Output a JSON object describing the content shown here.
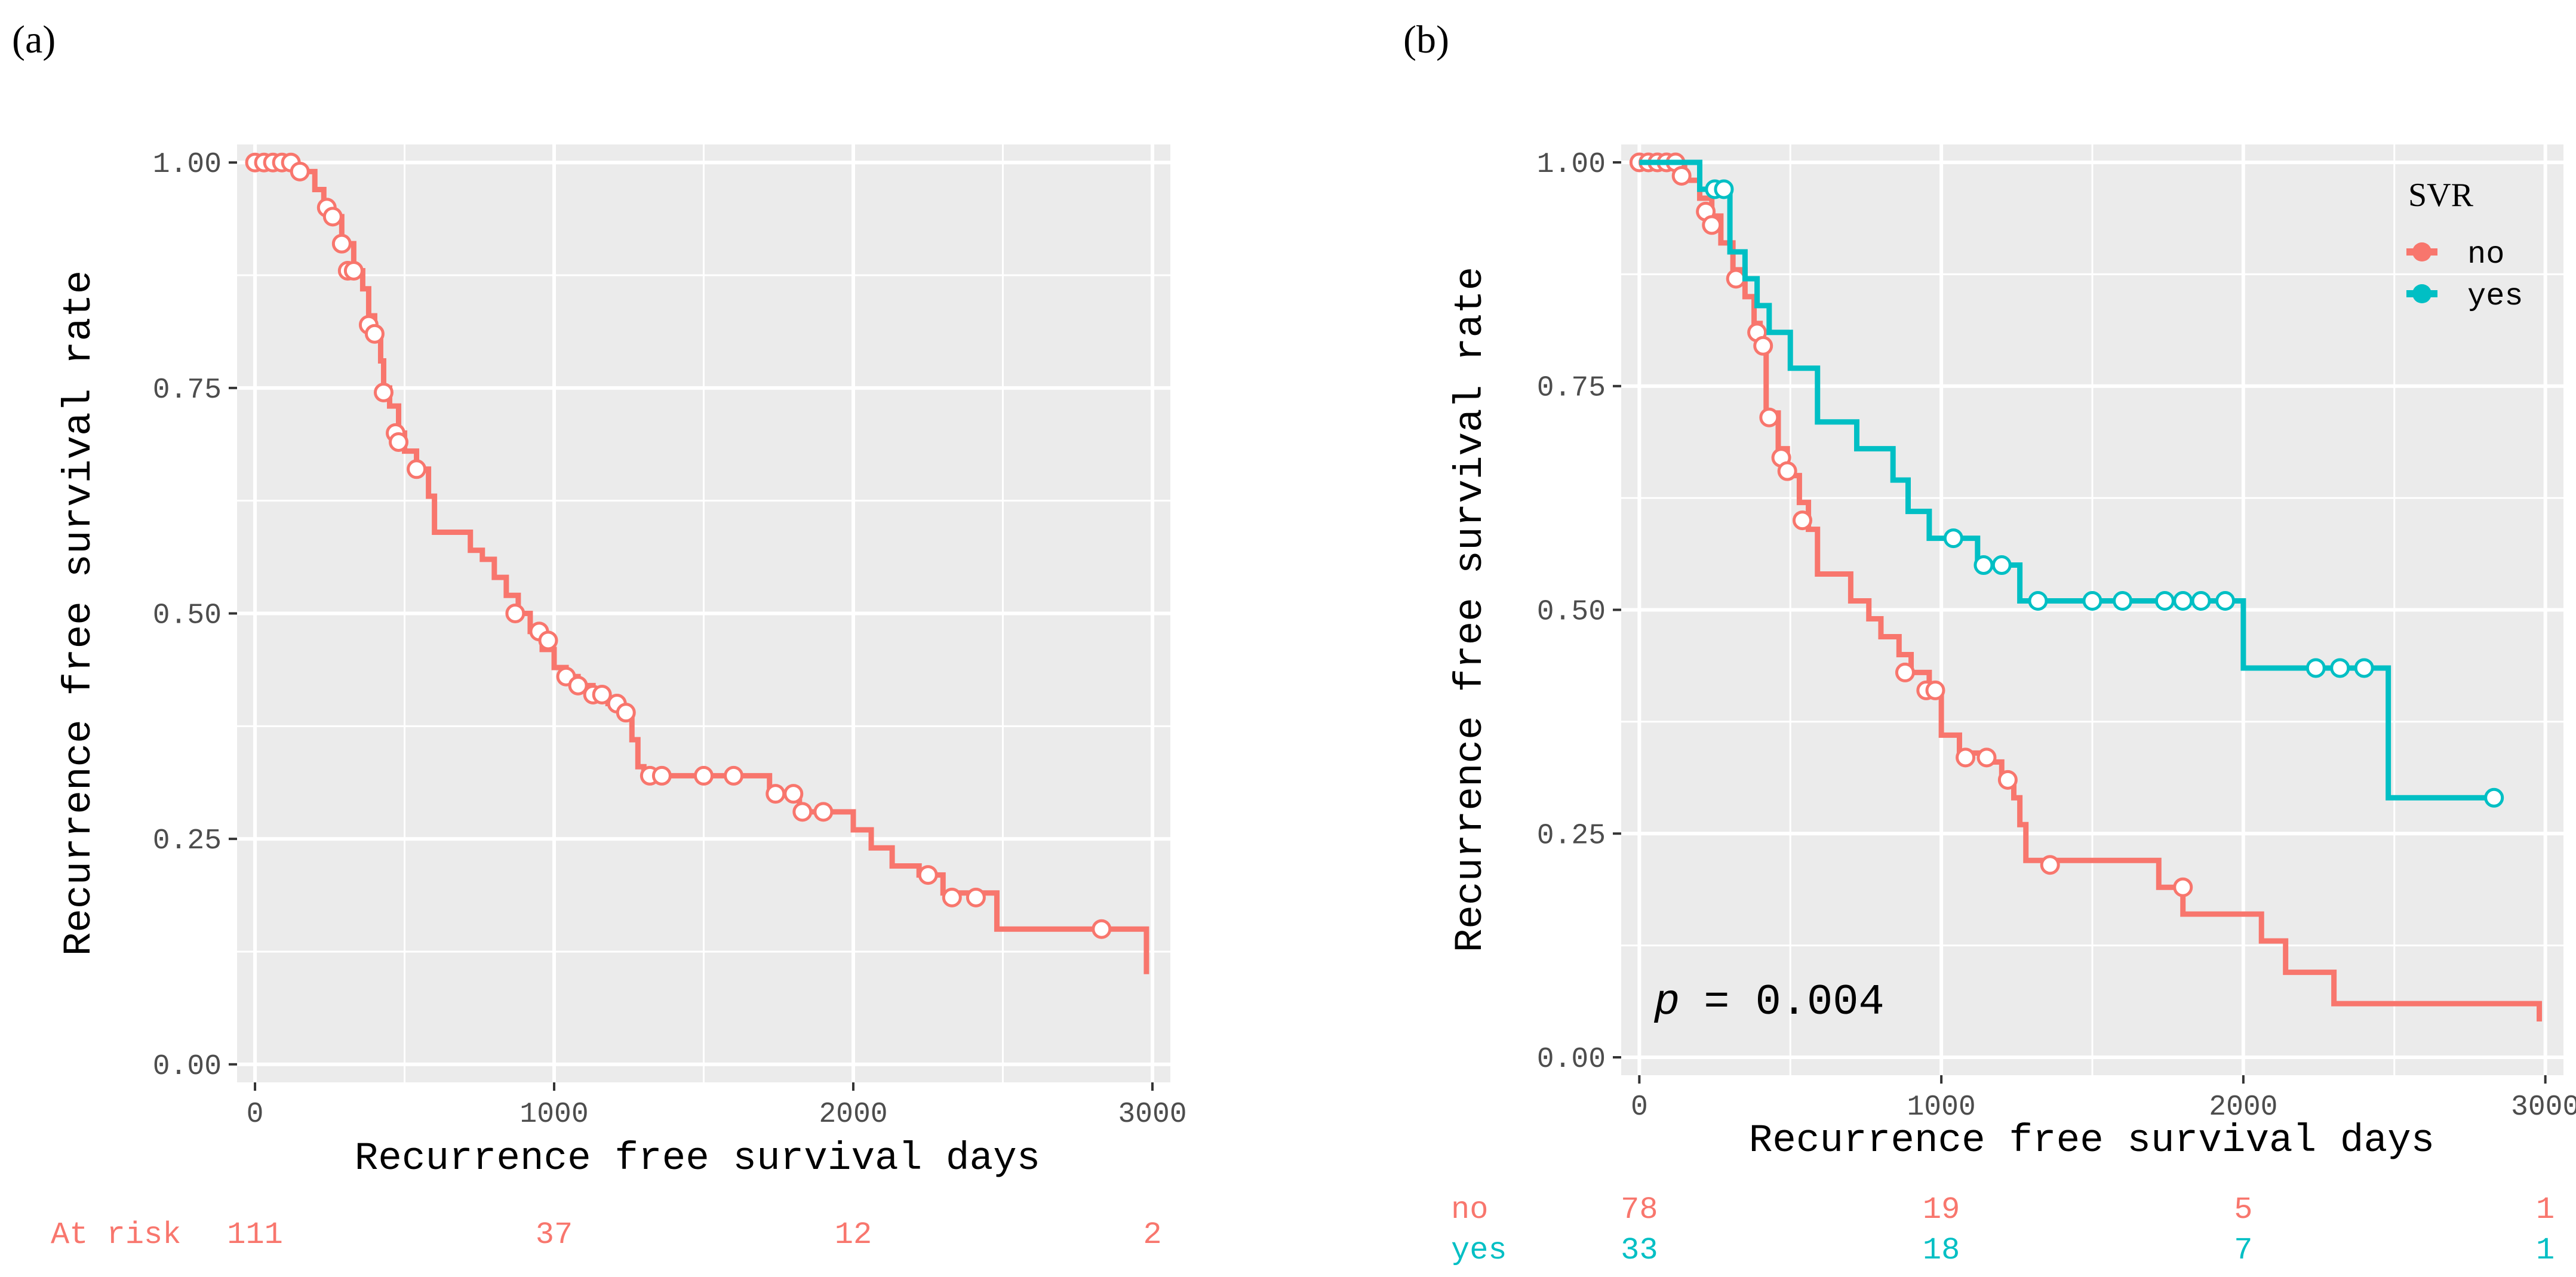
{
  "panels": [
    {
      "letter": "(a)",
      "xlabel": "Recurrence free survival days",
      "ylabel": "Recurrence free survival rate",
      "risk_label": "At risk"
    },
    {
      "letter": "(b)",
      "xlabel": "Recurrence free survival days",
      "ylabel": "Recurrence free survival rate",
      "legend_title": "SVR",
      "pvalue_symbol": "p",
      "pvalue_text": "= 0.004"
    }
  ],
  "colors": {
    "no": "#F8766D",
    "yes": "#00BFC4",
    "panel_bg": "#EBEBEB",
    "grid": "#FFFFFF"
  },
  "chart_data": [
    {
      "type": "line",
      "subtype": "kaplan-meier",
      "title": "",
      "xlabel": "Recurrence free survival days",
      "ylabel": "Recurrence free survival rate",
      "xlim": [
        -60,
        3060
      ],
      "ylim": [
        -0.02,
        1.02
      ],
      "x_ticks": [
        "0",
        "1000",
        "2000",
        "3000"
      ],
      "y_ticks": [
        "0.00",
        "0.25",
        "0.50",
        "0.75",
        "1.00"
      ],
      "grid": true,
      "series": [
        {
          "color": "#F8766D",
          "steps": [
            [
              0,
              1.0
            ],
            [
              140,
              0.99
            ],
            [
              200,
              0.97
            ],
            [
              230,
              0.95
            ],
            [
              260,
              0.94
            ],
            [
              290,
              0.91
            ],
            [
              330,
              0.88
            ],
            [
              360,
              0.86
            ],
            [
              380,
              0.83
            ],
            [
              400,
              0.81
            ],
            [
              420,
              0.78
            ],
            [
              430,
              0.75
            ],
            [
              450,
              0.73
            ],
            [
              480,
              0.7
            ],
            [
              500,
              0.68
            ],
            [
              540,
              0.66
            ],
            [
              580,
              0.63
            ],
            [
              600,
              0.59
            ],
            [
              720,
              0.57
            ],
            [
              760,
              0.56
            ],
            [
              800,
              0.54
            ],
            [
              840,
              0.52
            ],
            [
              880,
              0.5
            ],
            [
              920,
              0.48
            ],
            [
              960,
              0.46
            ],
            [
              1000,
              0.44
            ],
            [
              1040,
              0.43
            ],
            [
              1080,
              0.42
            ],
            [
              1130,
              0.41
            ],
            [
              1180,
              0.4
            ],
            [
              1220,
              0.39
            ],
            [
              1260,
              0.36
            ],
            [
              1280,
              0.33
            ],
            [
              1300,
              0.32
            ],
            [
              1720,
              0.3
            ],
            [
              1820,
              0.28
            ],
            [
              2000,
              0.26
            ],
            [
              2060,
              0.24
            ],
            [
              2130,
              0.22
            ],
            [
              2220,
              0.21
            ],
            [
              2300,
              0.19
            ],
            [
              2480,
              0.15
            ],
            [
              2980,
              0.1
            ]
          ],
          "end_x": 2980,
          "censored": [
            [
              0,
              1.0
            ],
            [
              30,
              1.0
            ],
            [
              60,
              1.0
            ],
            [
              90,
              1.0
            ],
            [
              120,
              1.0
            ],
            [
              150,
              0.99
            ],
            [
              240,
              0.95
            ],
            [
              260,
              0.94
            ],
            [
              290,
              0.91
            ],
            [
              310,
              0.88
            ],
            [
              330,
              0.88
            ],
            [
              380,
              0.82
            ],
            [
              400,
              0.81
            ],
            [
              430,
              0.745
            ],
            [
              470,
              0.7
            ],
            [
              480,
              0.69
            ],
            [
              540,
              0.66
            ],
            [
              870,
              0.5
            ],
            [
              950,
              0.48
            ],
            [
              980,
              0.47
            ],
            [
              1040,
              0.43
            ],
            [
              1080,
              0.42
            ],
            [
              1130,
              0.41
            ],
            [
              1160,
              0.41
            ],
            [
              1210,
              0.4
            ],
            [
              1240,
              0.39
            ],
            [
              1320,
              0.32
            ],
            [
              1360,
              0.32
            ],
            [
              1500,
              0.32
            ],
            [
              1600,
              0.32
            ],
            [
              1740,
              0.3
            ],
            [
              1800,
              0.3
            ],
            [
              1830,
              0.28
            ],
            [
              1900,
              0.28
            ],
            [
              2250,
              0.21
            ],
            [
              2330,
              0.185
            ],
            [
              2410,
              0.185
            ],
            [
              2830,
              0.15
            ]
          ]
        }
      ],
      "at_risk": {
        "label": "At risk",
        "times": [
          0,
          1000,
          2000,
          3000
        ],
        "values": [
          111,
          37,
          12,
          2
        ]
      }
    },
    {
      "type": "line",
      "subtype": "kaplan-meier",
      "title": "",
      "xlabel": "Recurrence free survival days",
      "ylabel": "Recurrence free survival rate",
      "xlim": [
        -60,
        3060
      ],
      "ylim": [
        -0.02,
        1.02
      ],
      "x_ticks": [
        "0",
        "1000",
        "2000",
        "3000"
      ],
      "y_ticks": [
        "0.00",
        "0.25",
        "0.50",
        "0.75",
        "1.00"
      ],
      "grid": true,
      "legend": {
        "title": "SVR",
        "position": "top-right"
      },
      "series": [
        {
          "name": "no",
          "color": "#F8766D",
          "steps": [
            [
              0,
              1.0
            ],
            [
              150,
              0.98
            ],
            [
              200,
              0.96
            ],
            [
              240,
              0.94
            ],
            [
              270,
              0.91
            ],
            [
              310,
              0.88
            ],
            [
              350,
              0.85
            ],
            [
              380,
              0.82
            ],
            [
              400,
              0.79
            ],
            [
              420,
              0.72
            ],
            [
              460,
              0.68
            ],
            [
              490,
              0.65
            ],
            [
              530,
              0.62
            ],
            [
              560,
              0.59
            ],
            [
              590,
              0.54
            ],
            [
              700,
              0.51
            ],
            [
              760,
              0.49
            ],
            [
              800,
              0.47
            ],
            [
              860,
              0.45
            ],
            [
              900,
              0.43
            ],
            [
              960,
              0.41
            ],
            [
              1000,
              0.36
            ],
            [
              1060,
              0.34
            ],
            [
              1160,
              0.33
            ],
            [
              1200,
              0.31
            ],
            [
              1240,
              0.29
            ],
            [
              1260,
              0.26
            ],
            [
              1280,
              0.22
            ],
            [
              1720,
              0.19
            ],
            [
              1800,
              0.16
            ],
            [
              2060,
              0.13
            ],
            [
              2140,
              0.095
            ],
            [
              2300,
              0.06
            ],
            [
              2980,
              0.04
            ]
          ],
          "end_x": 2980,
          "censored": [
            [
              0,
              1.0
            ],
            [
              30,
              1.0
            ],
            [
              60,
              1.0
            ],
            [
              90,
              1.0
            ],
            [
              120,
              1.0
            ],
            [
              140,
              0.985
            ],
            [
              220,
              0.945
            ],
            [
              240,
              0.93
            ],
            [
              320,
              0.87
            ],
            [
              390,
              0.81
            ],
            [
              410,
              0.795
            ],
            [
              430,
              0.715
            ],
            [
              470,
              0.67
            ],
            [
              490,
              0.655
            ],
            [
              540,
              0.6
            ],
            [
              880,
              0.43
            ],
            [
              950,
              0.41
            ],
            [
              980,
              0.41
            ],
            [
              1080,
              0.335
            ],
            [
              1150,
              0.335
            ],
            [
              1220,
              0.31
            ],
            [
              1360,
              0.215
            ],
            [
              1800,
              0.19
            ]
          ]
        },
        {
          "name": "yes",
          "color": "#00BFC4",
          "steps": [
            [
              0,
              1.0
            ],
            [
              200,
              0.97
            ],
            [
              300,
              0.9
            ],
            [
              350,
              0.87
            ],
            [
              390,
              0.84
            ],
            [
              430,
              0.81
            ],
            [
              500,
              0.77
            ],
            [
              590,
              0.71
            ],
            [
              720,
              0.68
            ],
            [
              840,
              0.645
            ],
            [
              890,
              0.61
            ],
            [
              960,
              0.58
            ],
            [
              1120,
              0.55
            ],
            [
              1260,
              0.51
            ],
            [
              2000,
              0.435
            ],
            [
              2480,
              0.29
            ]
          ],
          "end_x": 2840,
          "censored": [
            [
              250,
              0.97
            ],
            [
              280,
              0.97
            ],
            [
              1040,
              0.58
            ],
            [
              1140,
              0.55
            ],
            [
              1200,
              0.55
            ],
            [
              1320,
              0.51
            ],
            [
              1500,
              0.51
            ],
            [
              1600,
              0.51
            ],
            [
              1740,
              0.51
            ],
            [
              1800,
              0.51
            ],
            [
              1860,
              0.51
            ],
            [
              1940,
              0.51
            ],
            [
              2240,
              0.435
            ],
            [
              2320,
              0.435
            ],
            [
              2400,
              0.435
            ],
            [
              2830,
              0.29
            ]
          ]
        }
      ],
      "at_risk": {
        "times": [
          0,
          1000,
          2000,
          3000
        ],
        "rows": [
          {
            "label": "no",
            "values": [
              78,
              19,
              5,
              1
            ]
          },
          {
            "label": "yes",
            "values": [
              33,
              18,
              7,
              1
            ]
          }
        ]
      },
      "annotations": [
        "p = 0.004"
      ]
    }
  ]
}
